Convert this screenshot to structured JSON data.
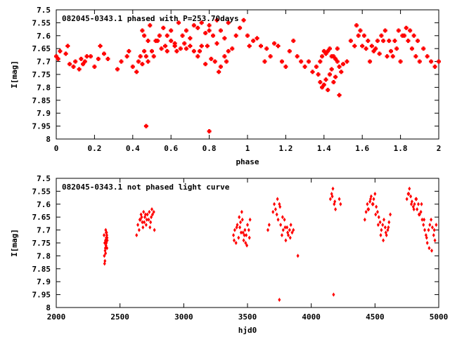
{
  "chart_data": [
    {
      "type": "scatter",
      "title": "082045-0343.1 phased with P=253.70days",
      "xlabel": "phase",
      "ylabel": "I[mag]",
      "xlim": [
        0,
        2
      ],
      "ylim": [
        8,
        7.5
      ],
      "y_inverted": true,
      "xticks": [
        "0",
        "0.2",
        "0.4",
        "0.6",
        "0.8",
        "1",
        "1.2",
        "1.4",
        "1.6",
        "1.8",
        "2"
      ],
      "yticks": [
        "7.5",
        "7.55",
        "7.6",
        "7.65",
        "7.7",
        "7.75",
        "7.8",
        "7.85",
        "7.9",
        "7.95",
        "8"
      ],
      "marker": "cross",
      "color": "#ff0000",
      "grid": false,
      "series": [
        {
          "x": [
            0.0,
            0.01,
            0.02,
            0.05,
            0.06,
            0.07,
            0.09,
            0.1,
            0.12,
            0.13,
            0.14,
            0.15,
            0.16,
            0.18,
            0.2,
            0.22,
            0.23,
            0.25,
            0.27,
            0.32,
            0.34,
            0.37,
            0.38,
            0.4,
            0.42,
            0.43,
            0.44,
            0.45,
            0.46,
            0.47,
            0.48,
            0.5,
            0.51,
            0.53,
            0.55,
            0.57,
            0.58,
            0.6,
            0.62,
            0.63,
            0.65,
            0.67,
            0.68,
            0.7,
            0.72,
            0.74,
            0.75,
            0.76,
            0.78,
            0.79,
            0.8,
            0.81,
            0.83,
            0.84,
            0.85,
            0.86,
            0.88,
            0.89,
            0.9,
            0.92,
            0.94,
            0.96,
            0.45,
            0.46,
            0.48,
            0.49,
            0.52,
            0.54,
            0.56,
            0.58,
            0.6,
            0.62,
            0.64,
            0.66,
            0.68,
            0.7,
            0.72,
            0.74,
            0.76,
            0.78,
            0.8,
            0.82,
            0.84,
            0.86,
            0.88,
            0.9,
            0.47,
            0.8,
            0.98,
            1.0,
            1.01,
            1.03,
            1.05,
            1.07,
            1.09,
            1.1,
            1.12,
            1.14,
            1.16,
            1.18,
            1.2,
            1.22,
            1.24,
            1.26,
            1.28,
            1.3,
            1.32,
            1.34,
            1.36,
            1.37,
            1.38,
            1.39,
            1.4,
            1.41,
            1.42,
            1.43,
            1.44,
            1.45,
            1.46,
            1.47,
            1.48,
            1.49,
            1.5,
            1.38,
            1.39,
            1.4,
            1.41,
            1.42,
            1.43,
            1.44,
            1.45,
            1.46,
            1.47,
            1.48,
            1.52,
            1.54,
            1.56,
            1.58,
            1.6,
            1.62,
            1.64,
            1.66,
            1.68,
            1.7,
            1.72,
            1.74,
            1.76,
            1.78,
            1.8,
            1.82,
            1.84,
            1.86,
            1.88,
            1.9,
            1.92,
            1.94,
            1.96,
            1.98,
            2.0,
            1.57,
            1.59,
            1.61,
            1.63,
            1.65,
            1.67,
            1.69,
            1.71,
            1.73,
            1.75,
            1.77,
            1.79,
            1.81,
            1.83,
            1.85,
            1.87,
            1.89
          ],
          "y": [
            7.68,
            7.69,
            7.66,
            7.67,
            7.64,
            7.71,
            7.72,
            7.7,
            7.73,
            7.69,
            7.71,
            7.7,
            7.68,
            7.68,
            7.72,
            7.69,
            7.64,
            7.67,
            7.69,
            7.73,
            7.7,
            7.68,
            7.66,
            7.72,
            7.74,
            7.7,
            7.68,
            7.71,
            7.66,
            7.68,
            7.7,
            7.66,
            7.68,
            7.62,
            7.65,
            7.64,
            7.66,
            7.62,
            7.64,
            7.66,
            7.65,
            7.63,
            7.65,
            7.61,
            7.66,
            7.68,
            7.66,
            7.64,
            7.71,
            7.64,
            7.58,
            7.69,
            7.7,
            7.63,
            7.74,
            7.72,
            7.68,
            7.7,
            7.66,
            7.65,
            7.6,
            7.57,
            7.58,
            7.6,
            7.62,
            7.56,
            7.62,
            7.6,
            7.57,
            7.6,
            7.58,
            7.63,
            7.55,
            7.6,
            7.58,
            7.64,
            7.56,
            7.57,
            7.55,
            7.59,
            7.56,
            7.6,
            7.54,
            7.58,
            7.61,
            7.55,
            7.95,
            7.97,
            7.54,
            7.6,
            7.64,
            7.62,
            7.61,
            7.64,
            7.7,
            7.65,
            7.68,
            7.63,
            7.64,
            7.7,
            7.72,
            7.66,
            7.62,
            7.68,
            7.7,
            7.72,
            7.7,
            7.74,
            7.72,
            7.75,
            7.78,
            7.8,
            7.79,
            7.77,
            7.81,
            7.75,
            7.73,
            7.78,
            7.76,
            7.7,
            7.72,
            7.74,
            7.71,
            7.7,
            7.68,
            7.66,
            7.67,
            7.66,
            7.65,
            7.68,
            7.68,
            7.69,
            7.65,
            7.83,
            7.7,
            7.62,
            7.64,
            7.6,
            7.64,
            7.65,
            7.7,
            7.66,
            7.62,
            7.6,
            7.58,
            7.62,
            7.68,
            7.65,
            7.7,
            7.6,
            7.62,
            7.65,
            7.68,
            7.7,
            7.65,
            7.68,
            7.7,
            7.72,
            7.7,
            7.56,
            7.58,
            7.6,
            7.62,
            7.64,
            7.65,
            7.67,
            7.62,
            7.68,
            7.66,
            7.62,
            7.58,
            7.6,
            7.57,
            7.58,
            7.6,
            7.62
          ]
        }
      ]
    },
    {
      "type": "scatter",
      "title": "082045-0343.1 not phased light curve",
      "xlabel": "hjd0",
      "ylabel": "I[mag]",
      "xlim": [
        2000,
        5000
      ],
      "ylim": [
        8,
        7.5
      ],
      "y_inverted": true,
      "xticks": [
        "2000",
        "2500",
        "3000",
        "3500",
        "4000",
        "4500",
        "5000"
      ],
      "yticks": [
        "7.5",
        "7.55",
        "7.6",
        "7.65",
        "7.7",
        "7.75",
        "7.8",
        "7.85",
        "7.9",
        "7.95",
        "8"
      ],
      "marker": "diamond",
      "color": "#ff0000",
      "grid": false,
      "series": [
        {
          "x": [
            2375,
            2380,
            2383,
            2386,
            2388,
            2390,
            2392,
            2395,
            2398,
            2400,
            2377,
            2382,
            2387,
            2393,
            2397,
            2379,
            2385,
            2391,
            2396,
            2399,
            2630,
            2640,
            2655,
            2665,
            2675,
            2685,
            2695,
            2705,
            2715,
            2725,
            2735,
            2745,
            2755,
            2765,
            2770,
            2650,
            2670,
            2690,
            2710,
            2730,
            2750,
            2660,
            2700,
            2740,
            2680,
            3390,
            3400,
            3410,
            3420,
            3430,
            3440,
            3450,
            3460,
            3470,
            3480,
            3490,
            3500,
            3510,
            3520,
            3395,
            3415,
            3435,
            3455,
            3475,
            3495,
            3515,
            3445,
            3465,
            3485,
            3660,
            3670,
            3700,
            3710,
            3720,
            3730,
            3740,
            3750,
            3760,
            3770,
            3780,
            3790,
            3800,
            3810,
            3820,
            3830,
            3840,
            3850,
            3860,
            3735,
            3755,
            3775,
            3795,
            3815,
            3835,
            3750,
            3895,
            4150,
            4160,
            4170,
            4180,
            4190,
            4220,
            4230,
            4165,
            4185,
            4175,
            4420,
            4430,
            4440,
            4450,
            4460,
            4470,
            4480,
            4490,
            4500,
            4510,
            4520,
            4530,
            4540,
            4550,
            4560,
            4570,
            4580,
            4590,
            4600,
            4610,
            4620,
            4445,
            4465,
            4485,
            4505,
            4525,
            4545,
            4565,
            4585,
            4605,
            4750,
            4760,
            4770,
            4780,
            4790,
            4800,
            4810,
            4820,
            4830,
            4840,
            4850,
            4860,
            4870,
            4880,
            4890,
            4900,
            4910,
            4920,
            4930,
            4940,
            4950,
            4960,
            4970,
            4980,
            4765,
            4785,
            4805,
            4825,
            4845,
            4865,
            4885,
            4905,
            4925,
            4945,
            4965
          ],
          "y": [
            7.72,
            7.75,
            7.78,
            7.74,
            7.7,
            7.76,
            7.73,
            7.71,
            7.77,
            7.74,
            7.8,
            7.82,
            7.79,
            7.75,
            7.72,
            7.83,
            7.77,
            7.71,
            7.74,
            7.73,
            7.72,
            7.68,
            7.66,
            7.64,
            7.67,
            7.63,
            7.65,
            7.68,
            7.64,
            7.66,
            7.69,
            7.65,
            7.64,
            7.63,
            7.7,
            7.7,
            7.65,
            7.67,
            7.66,
            7.63,
            7.62,
            7.66,
            7.64,
            7.67,
            7.69,
            7.72,
            7.7,
            7.75,
            7.68,
            7.73,
            7.69,
            7.71,
            7.66,
            7.74,
            7.7,
            7.72,
            7.68,
            7.7,
            7.66,
            7.74,
            7.69,
            7.65,
            7.63,
            7.72,
            7.76,
            7.73,
            7.67,
            7.71,
            7.75,
            7.7,
            7.68,
            7.63,
            7.6,
            7.62,
            7.64,
            7.66,
            7.6,
            7.68,
            7.72,
            7.7,
            7.66,
            7.74,
            7.69,
            7.72,
            7.7,
            7.68,
            7.71,
            7.7,
            7.58,
            7.61,
            7.65,
            7.69,
            7.71,
            7.73,
            7.97,
            7.8,
            7.58,
            7.56,
            7.54,
            7.6,
            7.62,
            7.58,
            7.6,
            7.57,
            7.59,
            7.95,
            7.66,
            7.63,
            7.6,
            7.62,
            7.59,
            7.57,
            7.6,
            7.58,
            7.56,
            7.61,
            7.63,
            7.65,
            7.67,
            7.7,
            7.68,
            7.66,
            7.69,
            7.72,
            7.7,
            7.67,
            7.64,
            7.62,
            7.58,
            7.6,
            7.64,
            7.68,
            7.72,
            7.74,
            7.71,
            7.69,
            7.58,
            7.56,
            7.54,
            7.57,
            7.59,
            7.61,
            7.6,
            7.58,
            7.62,
            7.6,
            7.64,
            7.63,
            7.66,
            7.68,
            7.7,
            7.72,
            7.75,
            7.7,
            7.68,
            7.66,
            7.69,
            7.72,
            7.74,
            7.68,
            7.56,
            7.6,
            7.62,
            7.58,
            7.64,
            7.6,
            7.66,
            7.73,
            7.77,
            7.78,
            7.7
          ]
        }
      ]
    }
  ]
}
